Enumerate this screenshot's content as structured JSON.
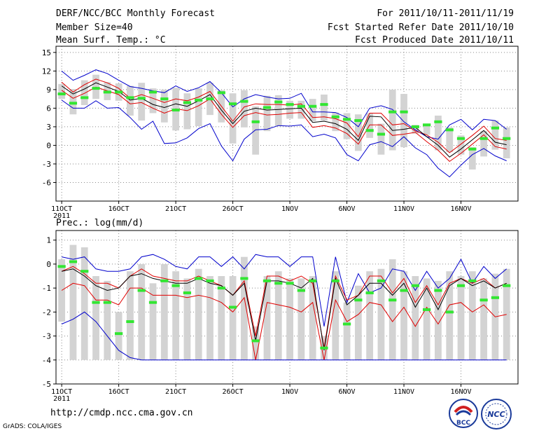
{
  "header": {
    "title": "DERF/NCC/BCC Monthly Forecast",
    "member_size": "Member Size=40",
    "variable": "Mean Surf. Temp.: °C",
    "period": "For 2011/10/11-2011/11/19",
    "fcst_started": "Fcst Started Refer Date 2011/10/10",
    "fcst_produced": "Fcst Produced Date 2011/10/11"
  },
  "footer": {
    "url": "http://cmdp.ncc.cma.gov.cn",
    "grads": "GrADS: COLA/IGES",
    "logo_bcc": "BCC",
    "logo_ncc": "NCC"
  },
  "colors": {
    "box": "#d3d3d3",
    "median": "#32e632",
    "ensemble_mean": "#000000",
    "spread": "#e00000",
    "extremes": "#0000cc",
    "grid": "#8a8a8a"
  },
  "chart_data": [
    {
      "name": "temperature",
      "type": "box",
      "title": "Mean Surf. Temp.: °C",
      "ylim": [
        -9,
        16
      ],
      "yticks": [
        15,
        12,
        9,
        6,
        3,
        0,
        -3,
        -6
      ],
      "xlim": [
        0.5,
        41
      ],
      "x_tick_days": [
        1,
        6,
        11,
        16,
        21,
        26,
        31,
        36
      ],
      "xtick_labels": [
        "11OCT",
        "16OCT",
        "21OCT",
        "26OCT",
        "1NOV",
        "6NOV",
        "11NOV",
        "16NOV"
      ],
      "year_label": "2011",
      "grid": true,
      "days": [
        1,
        2,
        3,
        4,
        5,
        6,
        7,
        8,
        9,
        10,
        11,
        12,
        13,
        14,
        15,
        16,
        17,
        18,
        19,
        20,
        21,
        22,
        23,
        24,
        25,
        26,
        27,
        28,
        29,
        30,
        31,
        32,
        33,
        34,
        35,
        36,
        37,
        38,
        39,
        40
      ],
      "series": [
        {
          "name": "max",
          "values": [
            12,
            10.5,
            11.3,
            12.2,
            11.6,
            10.5,
            9.5,
            9.2,
            8.8,
            8.5,
            9.6,
            8.7,
            9.3,
            10.3,
            8.5,
            6.2,
            7.5,
            8.2,
            7.8,
            7.5,
            7.6,
            8.4,
            5.4,
            5.4,
            5.3,
            4.5,
            3.0,
            6.0,
            6.4,
            5.8,
            3.8,
            2.5,
            1.4,
            1.0,
            3.3,
            4.2,
            2.5,
            4.2,
            4.0,
            2.6
          ]
        },
        {
          "name": "upper",
          "values": [
            10.2,
            8.6,
            9.8,
            10.7,
            10.1,
            9.2,
            7.6,
            8.2,
            7.6,
            6.9,
            7.5,
            7.2,
            7.8,
            8.7,
            6.3,
            3.9,
            6.2,
            6.7,
            6.6,
            6.6,
            6.5,
            6.7,
            4.5,
            4.6,
            4.3,
            3.6,
            1.4,
            5.2,
            5.2,
            3.3,
            3.5,
            2.3,
            1.7,
            0.5,
            -1.2,
            0.2,
            1.6,
            3.1,
            1.1,
            0.8
          ]
        },
        {
          "name": "mean",
          "values": [
            9.6,
            8.3,
            9.1,
            10.1,
            9.4,
            8.7,
            7.3,
            7.6,
            6.6,
            6.1,
            6.7,
            6.3,
            7.2,
            8.2,
            5.7,
            3.5,
            5.5,
            6.0,
            5.7,
            5.8,
            5.9,
            6.0,
            3.7,
            3.9,
            3.5,
            2.6,
            0.8,
            4.7,
            4.6,
            2.4,
            2.6,
            2.9,
            1.4,
            0.0,
            -1.9,
            -0.6,
            0.9,
            2.4,
            0.5,
            0.1
          ]
        },
        {
          "name": "lower",
          "values": [
            8.9,
            7.6,
            8.4,
            9.4,
            8.8,
            8.2,
            6.7,
            6.9,
            6.0,
            5.2,
            5.9,
            5.6,
            6.4,
            7.5,
            5.0,
            2.9,
            4.8,
            5.3,
            4.9,
            5.0,
            5.2,
            5.3,
            2.9,
            3.2,
            2.8,
            1.9,
            0.2,
            3.3,
            3.3,
            1.6,
            1.8,
            2.1,
            0.6,
            -0.8,
            -2.6,
            -1.3,
            0.2,
            1.7,
            -0.2,
            -0.6
          ]
        },
        {
          "name": "min",
          "values": [
            7.3,
            6.0,
            6.0,
            7.2,
            6.0,
            6.1,
            4.5,
            2.6,
            3.9,
            0.3,
            0.4,
            1.2,
            2.7,
            3.5,
            -0.1,
            -2.5,
            1.0,
            2.5,
            2.6,
            3.2,
            3.1,
            3.3,
            1.4,
            1.8,
            1.2,
            -1.5,
            -2.5,
            0.1,
            0.6,
            -0.2,
            1.4,
            -0.4,
            -1.5,
            -3.7,
            -5.1,
            -3.2,
            -1.5,
            -0.5,
            -1.7,
            -2.5
          ]
        }
      ],
      "boxes": [
        {
          "q25": 7.5,
          "q75": 9.9,
          "median": 8.3
        },
        {
          "q25": 5.0,
          "q75": 9.1,
          "median": 6.8
        },
        {
          "q25": 6.5,
          "q75": 10.5,
          "median": 7.7
        },
        {
          "q25": 7.5,
          "q75": 11.4,
          "median": 9.2
        },
        {
          "q25": 7.3,
          "q75": 10.2,
          "median": 8.6
        },
        {
          "q25": 7.2,
          "q75": 10.0,
          "median": 8.6
        },
        {
          "q25": 4.8,
          "q75": 9.6,
          "median": 7.7
        },
        {
          "q25": 4.0,
          "q75": 10.1,
          "median": 7.6
        },
        {
          "q25": 5.2,
          "q75": 9.2,
          "median": 8.6
        },
        {
          "q25": 3.7,
          "q75": 9.0,
          "median": 7.5
        },
        {
          "q25": 2.4,
          "q75": 9.3,
          "median": 5.7
        },
        {
          "q25": 2.6,
          "q75": 8.4,
          "median": 6.9
        },
        {
          "q25": 3.1,
          "q75": 9.2,
          "median": 7.3
        },
        {
          "q25": 4.9,
          "q75": 10.1,
          "median": 7.5
        },
        {
          "q25": 3.7,
          "q75": 8.9,
          "median": 8.5
        },
        {
          "q25": 0.3,
          "q75": 8.4,
          "median": 6.7
        },
        {
          "q25": 2.9,
          "q75": 8.9,
          "median": 7.1
        },
        {
          "q25": -1.5,
          "q75": 6.3,
          "median": 3.8
        },
        {
          "q25": 2.3,
          "q75": 8.0,
          "median": 6.1
        },
        {
          "q25": 3.1,
          "q75": 8.1,
          "median": 7.0
        },
        {
          "q25": 4.3,
          "q75": 7.2,
          "median": 6.6
        },
        {
          "q25": 4.3,
          "q75": 7.2,
          "median": 6.3
        },
        {
          "q25": 3.9,
          "q75": 7.5,
          "median": 6.3
        },
        {
          "q25": 4.0,
          "q75": 8.2,
          "median": 6.6
        },
        {
          "q25": 2.3,
          "q75": 5.3,
          "median": 4.6
        },
        {
          "q25": 1.0,
          "q75": 5.2,
          "median": 4.2
        },
        {
          "q25": -0.9,
          "q75": 5.0,
          "median": 4.0
        },
        {
          "q25": 1.2,
          "q75": 5.2,
          "median": 2.4
        },
        {
          "q25": -1.5,
          "q75": 3.5,
          "median": 1.8
        },
        {
          "q25": -0.8,
          "q75": 9.0,
          "median": 5.4
        },
        {
          "q25": -0.3,
          "q75": 8.3,
          "median": 5.4
        },
        {
          "q25": 1.9,
          "q75": 3.3,
          "median": 3.0
        },
        {
          "q25": 1.7,
          "q75": 3.3,
          "median": 3.3
        },
        {
          "q25": -0.8,
          "q75": 4.8,
          "median": 3.8
        },
        {
          "q25": -1.1,
          "q75": 2.9,
          "median": 2.5
        },
        {
          "q25": -1.5,
          "q75": 1.6,
          "median": 1.1
        },
        {
          "q25": -3.9,
          "q75": -0.3,
          "median": -0.6
        },
        {
          "q25": -1.8,
          "q75": 2.3,
          "median": 1.1
        },
        {
          "q25": -0.7,
          "q75": 4.0,
          "median": 2.8
        },
        {
          "q25": -2.1,
          "q75": 2.9,
          "median": 1.1
        }
      ]
    },
    {
      "name": "precipitation",
      "type": "box",
      "title": "Prec.: log(mm/d)",
      "ylim": [
        -5,
        1.4
      ],
      "yticks": [
        1,
        0,
        -1,
        -2,
        -3,
        -4,
        -5
      ],
      "xlim": [
        0.5,
        41
      ],
      "x_tick_days": [
        1,
        6,
        11,
        16,
        21,
        26,
        31,
        36
      ],
      "xtick_labels": [
        "11OCT",
        "16OCT",
        "21OCT",
        "26OCT",
        "1NOV",
        "6NOV",
        "11NOV",
        "16NOV"
      ],
      "year_label": "2011",
      "grid": true,
      "days": [
        1,
        2,
        3,
        4,
        5,
        6,
        7,
        8,
        9,
        10,
        11,
        12,
        13,
        14,
        15,
        16,
        17,
        18,
        19,
        20,
        21,
        22,
        23,
        24,
        25,
        26,
        27,
        28,
        29,
        30,
        31,
        32,
        33,
        34,
        35,
        36,
        37,
        38,
        39,
        40
      ],
      "series": [
        {
          "name": "max",
          "values": [
            0.3,
            0.2,
            0.3,
            -0.2,
            -0.3,
            -0.3,
            -0.2,
            0.3,
            0.4,
            0.2,
            -0.1,
            -0.2,
            0.3,
            0.3,
            -0.1,
            0.3,
            -0.2,
            0.4,
            0.3,
            0.3,
            -0.1,
            0.3,
            0.3,
            -2.6,
            0.3,
            -1.6,
            -0.4,
            -1.2,
            -1.0,
            -0.2,
            -0.3,
            -1.1,
            -0.3,
            -1.0,
            -0.6,
            0.2,
            -0.8,
            -0.1,
            -0.6,
            -0.2
          ]
        },
        {
          "name": "upper",
          "values": [
            -0.3,
            -0.1,
            -0.4,
            -0.8,
            -0.8,
            -1.0,
            -0.5,
            -0.2,
            -0.5,
            -0.6,
            -0.7,
            -0.7,
            -0.5,
            -0.7,
            -0.9,
            -1.3,
            -0.7,
            -3.0,
            -0.5,
            -0.5,
            -0.7,
            -0.5,
            -0.8,
            -3.5,
            -0.5,
            -1.5,
            -1.3,
            -0.5,
            -0.5,
            -1.2,
            -0.6,
            -1.6,
            -0.9,
            -1.7,
            -0.8,
            -0.6,
            -0.8,
            -0.6,
            -1.0,
            -0.8
          ]
        },
        {
          "name": "mean",
          "values": [
            -0.3,
            -0.2,
            -0.5,
            -0.9,
            -1.1,
            -1.0,
            -0.5,
            -0.4,
            -0.6,
            -0.7,
            -0.8,
            -0.8,
            -0.6,
            -0.8,
            -0.9,
            -1.3,
            -0.8,
            -3.2,
            -0.7,
            -0.7,
            -0.8,
            -1.0,
            -0.6,
            -3.6,
            -0.6,
            -1.7,
            -1.3,
            -0.8,
            -0.8,
            -1.3,
            -0.8,
            -1.8,
            -1.0,
            -1.9,
            -0.9,
            -0.6,
            -0.9,
            -0.7,
            -1.0,
            -0.8
          ]
        },
        {
          "name": "lower",
          "values": [
            -1.1,
            -0.8,
            -0.9,
            -1.5,
            -1.5,
            -1.7,
            -1.0,
            -1.0,
            -1.3,
            -1.3,
            -1.3,
            -1.4,
            -1.3,
            -1.4,
            -1.6,
            -2.0,
            -1.4,
            -4.0,
            -1.6,
            -1.7,
            -1.8,
            -2.0,
            -1.6,
            -4.0,
            -1.5,
            -2.4,
            -2.1,
            -1.6,
            -1.7,
            -2.4,
            -1.8,
            -2.6,
            -1.8,
            -2.5,
            -1.7,
            -1.6,
            -2.0,
            -1.7,
            -2.2,
            -2.1
          ]
        },
        {
          "name": "min",
          "values": [
            -2.5,
            -2.3,
            -2.0,
            -2.4,
            -3.0,
            -3.6,
            -3.9,
            -4.0,
            -4.0,
            -4.0,
            -4.0,
            -4.0,
            -4.0,
            -4.0,
            -4.0,
            -4.0,
            -4.0,
            -4.0,
            -4.0,
            -4.0,
            -4.0,
            -4.0,
            -4.0,
            -4.0,
            -4.0,
            -4.0,
            -4.0,
            -4.0,
            -4.0,
            -4.0,
            -4.0,
            -4.0,
            -4.0,
            -4.0,
            -4.0,
            -4.0,
            -4.0,
            -4.0,
            -4.0,
            -4.0
          ]
        }
      ],
      "boxes": [
        {
          "q25": -2.4,
          "q75": 0.2,
          "median": -0.1
        },
        {
          "q25": -4.0,
          "q75": 0.8,
          "median": 0.1
        },
        {
          "q25": -4.0,
          "q75": 0.7,
          "median": -0.3
        },
        {
          "q25": -4.0,
          "q75": -0.5,
          "median": -1.6
        },
        {
          "q25": -4.0,
          "q75": -0.7,
          "median": -1.6
        },
        {
          "q25": -4.0,
          "q75": -2.0,
          "median": -2.9
        },
        {
          "q25": -4.0,
          "q75": -0.3,
          "median": -2.4
        },
        {
          "q25": -4.0,
          "q75": 0.0,
          "median": -1.1
        },
        {
          "q25": -4.0,
          "q75": -0.8,
          "median": -1.6
        },
        {
          "q25": -4.0,
          "q75": 0.0,
          "median": -0.7
        },
        {
          "q25": -4.0,
          "q75": -0.3,
          "median": -0.9
        },
        {
          "q25": -4.0,
          "q75": -0.6,
          "median": -1.2
        },
        {
          "q25": -4.0,
          "q75": -0.2,
          "median": -0.6
        },
        {
          "q25": -4.0,
          "q75": -0.5,
          "median": -0.7
        },
        {
          "q25": -4.0,
          "q75": -0.5,
          "median": -1.0
        },
        {
          "q25": -4.0,
          "q75": -0.5,
          "median": -1.8
        },
        {
          "q25": -4.0,
          "q75": 0.3,
          "median": -0.6
        },
        {
          "q25": -4.0,
          "q75": -2.6,
          "median": -3.2
        },
        {
          "q25": -4.0,
          "q75": -0.5,
          "median": -0.7
        },
        {
          "q25": -4.0,
          "q75": -0.3,
          "median": -0.8
        },
        {
          "q25": -4.0,
          "q75": -0.6,
          "median": -0.8
        },
        {
          "q25": -4.0,
          "q75": -0.6,
          "median": -1.1
        },
        {
          "q25": -4.0,
          "q75": -0.5,
          "median": -0.7
        },
        {
          "q25": -4.0,
          "q75": -3.0,
          "median": -3.5
        },
        {
          "q25": -4.0,
          "q75": -0.3,
          "median": -0.7
        },
        {
          "q25": -4.0,
          "q75": -1.6,
          "median": -2.5
        },
        {
          "q25": -4.0,
          "q75": -0.9,
          "median": -1.5
        },
        {
          "q25": -4.0,
          "q75": -0.3,
          "median": -1.2
        },
        {
          "q25": -4.0,
          "q75": -0.2,
          "median": -0.7
        },
        {
          "q25": -4.0,
          "q75": 0.2,
          "median": -1.5
        },
        {
          "q25": -4.0,
          "q75": -0.3,
          "median": -1.1
        },
        {
          "q25": -4.0,
          "q75": -0.5,
          "median": -0.9
        },
        {
          "q25": -4.0,
          "q75": -0.6,
          "median": -1.9
        },
        {
          "q25": -4.0,
          "q75": -0.7,
          "median": -1.1
        },
        {
          "q25": -4.0,
          "q75": -0.3,
          "median": -2.0
        },
        {
          "q25": -4.0,
          "q75": -0.5,
          "median": -0.9
        },
        {
          "q25": -4.0,
          "q75": -0.3,
          "median": -0.7
        },
        {
          "q25": -4.0,
          "q75": -0.6,
          "median": -1.5
        },
        {
          "q25": -4.0,
          "q75": -0.4,
          "median": -1.4
        },
        {
          "q25": -4.0,
          "q75": -0.2,
          "median": -0.9
        }
      ]
    }
  ]
}
